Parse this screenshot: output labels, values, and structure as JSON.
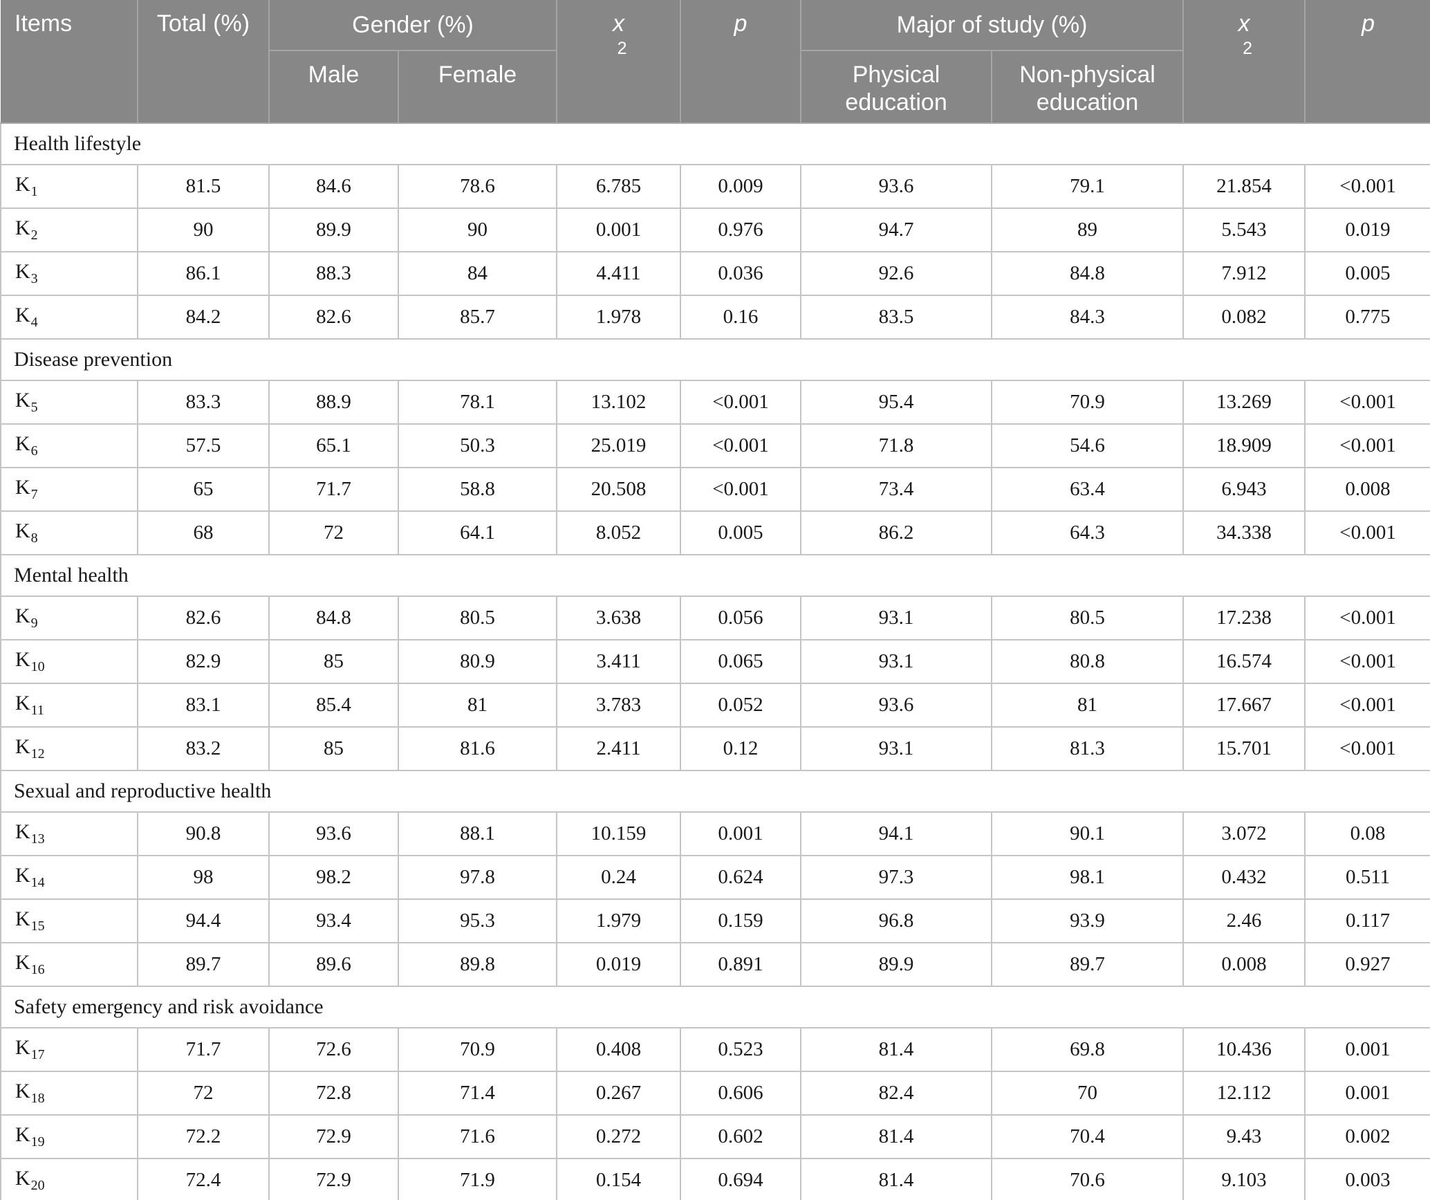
{
  "table": {
    "colors": {
      "header_bg": "#878787",
      "header_text": "#ffffff",
      "header_border": "#a5a5a5",
      "body_border": "#c4c4c4",
      "body_text": "#1a1a1a"
    },
    "columns": {
      "items": "Items",
      "total": "Total (%)",
      "gender_group": "Gender (%)",
      "male": "Male",
      "female": "Female",
      "chi_base": "x",
      "chi_sup": "2",
      "p1": "p",
      "major_group": "Major of study (%)",
      "physical": "Physical education",
      "non_physical": "Non-physical education",
      "p2": "p"
    },
    "value_column_order": [
      "Total (%)",
      "Male",
      "Female",
      "x2 (gender)",
      "p (gender)",
      "Physical education",
      "Non-physical education",
      "x2 (major)",
      "p (major)"
    ],
    "sections": [
      {
        "title": "Health lifestyle",
        "rows": [
          {
            "item_base": "K",
            "item_sub": "1",
            "values": [
              "81.5",
              "84.6",
              "78.6",
              "6.785",
              "0.009",
              "93.6",
              "79.1",
              "21.854",
              "<0.001"
            ]
          },
          {
            "item_base": "K",
            "item_sub": "2",
            "values": [
              "90",
              "89.9",
              "90",
              "0.001",
              "0.976",
              "94.7",
              "89",
              "5.543",
              "0.019"
            ]
          },
          {
            "item_base": "K",
            "item_sub": "3",
            "values": [
              "86.1",
              "88.3",
              "84",
              "4.411",
              "0.036",
              "92.6",
              "84.8",
              "7.912",
              "0.005"
            ]
          },
          {
            "item_base": "K",
            "item_sub": "4",
            "values": [
              "84.2",
              "82.6",
              "85.7",
              "1.978",
              "0.16",
              "83.5",
              "84.3",
              "0.082",
              "0.775"
            ]
          }
        ]
      },
      {
        "title": "Disease prevention",
        "rows": [
          {
            "item_base": "K",
            "item_sub": "5",
            "values": [
              "83.3",
              "88.9",
              "78.1",
              "13.102",
              "<0.001",
              "95.4",
              "70.9",
              "13.269",
              "<0.001"
            ]
          },
          {
            "item_base": "K",
            "item_sub": "6",
            "values": [
              "57.5",
              "65.1",
              "50.3",
              "25.019",
              "<0.001",
              "71.8",
              "54.6",
              "18.909",
              "<0.001"
            ]
          },
          {
            "item_base": "K",
            "item_sub": "7",
            "values": [
              "65",
              "71.7",
              "58.8",
              "20.508",
              "<0.001",
              "73.4",
              "63.4",
              "6.943",
              "0.008"
            ]
          },
          {
            "item_base": "K",
            "item_sub": "8",
            "values": [
              "68",
              "72",
              "64.1",
              "8.052",
              "0.005",
              "86.2",
              "64.3",
              "34.338",
              "<0.001"
            ]
          }
        ]
      },
      {
        "title": "Mental health",
        "rows": [
          {
            "item_base": "K",
            "item_sub": "9",
            "values": [
              "82.6",
              "84.8",
              "80.5",
              "3.638",
              "0.056",
              "93.1",
              "80.5",
              "17.238",
              "<0.001"
            ]
          },
          {
            "item_base": "K",
            "item_sub": "10",
            "values": [
              "82.9",
              "85",
              "80.9",
              "3.411",
              "0.065",
              "93.1",
              "80.8",
              "16.574",
              "<0.001"
            ]
          },
          {
            "item_base": "K",
            "item_sub": "11",
            "values": [
              "83.1",
              "85.4",
              "81",
              "3.783",
              "0.052",
              "93.6",
              "81",
              "17.667",
              "<0.001"
            ]
          },
          {
            "item_base": "K",
            "item_sub": "12",
            "values": [
              "83.2",
              "85",
              "81.6",
              "2.411",
              "0.12",
              "93.1",
              "81.3",
              "15.701",
              "<0.001"
            ]
          }
        ]
      },
      {
        "title": "Sexual and reproductive health",
        "rows": [
          {
            "item_base": "K",
            "item_sub": "13",
            "values": [
              "90.8",
              "93.6",
              "88.1",
              "10.159",
              "0.001",
              "94.1",
              "90.1",
              "3.072",
              "0.08"
            ]
          },
          {
            "item_base": "K",
            "item_sub": "14",
            "values": [
              "98",
              "98.2",
              "97.8",
              "0.24",
              "0.624",
              "97.3",
              "98.1",
              "0.432",
              "0.511"
            ]
          },
          {
            "item_base": "K",
            "item_sub": "15",
            "values": [
              "94.4",
              "93.4",
              "95.3",
              "1.979",
              "0.159",
              "96.8",
              "93.9",
              "2.46",
              "0.117"
            ]
          },
          {
            "item_base": "K",
            "item_sub": "16",
            "values": [
              "89.7",
              "89.6",
              "89.8",
              "0.019",
              "0.891",
              "89.9",
              "89.7",
              "0.008",
              "0.927"
            ]
          }
        ]
      },
      {
        "title": "Safety emergency and risk avoidance",
        "rows": [
          {
            "item_base": "K",
            "item_sub": "17",
            "values": [
              "71.7",
              "72.6",
              "70.9",
              "0.408",
              "0.523",
              "81.4",
              "69.8",
              "10.436",
              "0.001"
            ]
          },
          {
            "item_base": "K",
            "item_sub": "18",
            "values": [
              "72",
              "72.8",
              "71.4",
              "0.267",
              "0.606",
              "82.4",
              "70",
              "12.112",
              "0.001"
            ]
          },
          {
            "item_base": "K",
            "item_sub": "19",
            "values": [
              "72.2",
              "72.9",
              "71.6",
              "0.272",
              "0.602",
              "81.4",
              "70.4",
              "9.43",
              "0.002"
            ]
          },
          {
            "item_base": "K",
            "item_sub": "20",
            "values": [
              "72.4",
              "72.9",
              "71.9",
              "0.154",
              "0.694",
              "81.4",
              "70.6",
              "9.103",
              "0.003"
            ]
          }
        ]
      }
    ]
  }
}
